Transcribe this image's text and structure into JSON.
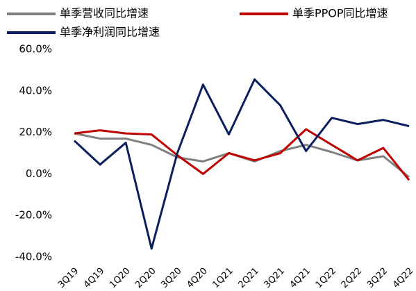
{
  "chart_data": {
    "type": "line",
    "categories": [
      "3Q19",
      "4Q19",
      "1Q20",
      "2Q20",
      "3Q20",
      "4Q20",
      "1Q21",
      "2Q21",
      "3Q21",
      "4Q21",
      "1Q22",
      "2Q22",
      "3Q22",
      "4Q22"
    ],
    "series": [
      {
        "name": "单季营收同比增速",
        "color": "#808080",
        "values": [
          19.5,
          17,
          17,
          14,
          8,
          6,
          10,
          6,
          11,
          14,
          10.5,
          6.5,
          8.5,
          -1.5
        ]
      },
      {
        "name": "单季PPOP同比增速",
        "color": "#c00000",
        "values": [
          19.5,
          21,
          19.5,
          19,
          9,
          0,
          10,
          6.5,
          10,
          21.5,
          14,
          6.5,
          12.5,
          -3
        ]
      },
      {
        "name": "单季净利润同比增速",
        "color": "#0b1f5e",
        "values": [
          16,
          4.5,
          15,
          -36,
          10,
          43,
          19,
          45.5,
          33,
          11,
          27,
          24,
          26,
          23
        ]
      }
    ],
    "ylim": [
      -40,
      60
    ],
    "yticks": [
      {
        "value": -40,
        "label": "-40.0%"
      },
      {
        "value": -20,
        "label": "-20.0%"
      },
      {
        "value": 0,
        "label": "0.0%"
      },
      {
        "value": 20,
        "label": "20.0%"
      },
      {
        "value": 40,
        "label": "40.0%"
      },
      {
        "value": 60,
        "label": "60.0%"
      }
    ]
  }
}
